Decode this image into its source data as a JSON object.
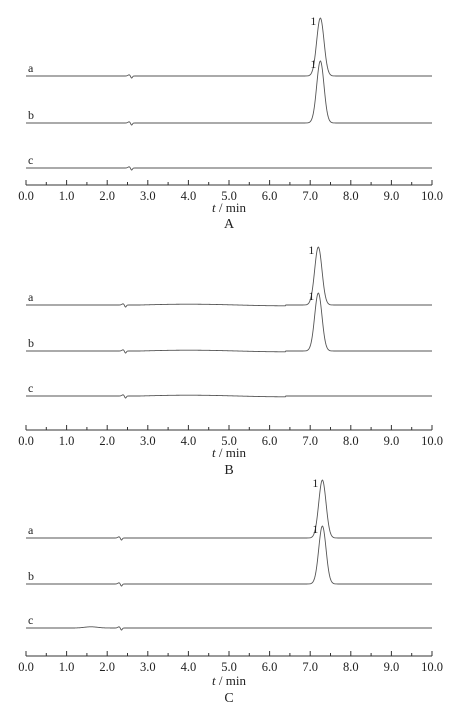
{
  "figure": {
    "axis_title_italic": "t",
    "axis_title_rest": " / min"
  },
  "chart_data": [
    {
      "type": "line",
      "panel_label": "A",
      "xlabel": "t / min",
      "xlim": [
        0,
        10
      ],
      "xticks": [
        "0.0",
        "1.0",
        "2.0",
        "3.0",
        "4.0",
        "5.0",
        "6.0",
        "7.0",
        "8.0",
        "9.0",
        "10.0"
      ],
      "grid": false,
      "legend": "none",
      "series": [
        {
          "name": "a",
          "baseline_note": "top trace",
          "peaks": [
            {
              "label": "1",
              "t": 7.25,
              "relative_height": 1.0
            }
          ],
          "disturbance_t": 2.6
        },
        {
          "name": "b",
          "peaks": [
            {
              "label": "1",
              "t": 7.25,
              "relative_height": 1.0
            }
          ],
          "disturbance_t": 2.6
        },
        {
          "name": "c",
          "peaks": [],
          "disturbance_t": 2.6
        }
      ]
    },
    {
      "type": "line",
      "panel_label": "B",
      "xlabel": "t / min",
      "xlim": [
        0,
        10
      ],
      "xticks": [
        "0.0",
        "1.0",
        "2.0",
        "3.0",
        "4.0",
        "5.0",
        "6.0",
        "7.0",
        "8.0",
        "9.0",
        "10.0"
      ],
      "grid": false,
      "legend": "none",
      "series": [
        {
          "name": "a",
          "peaks": [
            {
              "label": "1",
              "t": 7.2,
              "relative_height": 1.0
            }
          ],
          "disturbance_t": 2.45
        },
        {
          "name": "b",
          "peaks": [
            {
              "label": "1",
              "t": 7.2,
              "relative_height": 1.0
            }
          ],
          "disturbance_t": 2.45
        },
        {
          "name": "c",
          "peaks": [],
          "disturbance_t": 2.45
        }
      ]
    },
    {
      "type": "line",
      "panel_label": "C",
      "xlabel": "t / min",
      "xlim": [
        0,
        10
      ],
      "xticks": [
        "0.0",
        "1.0",
        "2.0",
        "3.0",
        "4.0",
        "5.0",
        "6.0",
        "7.0",
        "8.0",
        "9.0",
        "10.0"
      ],
      "grid": false,
      "legend": "none",
      "series": [
        {
          "name": "a",
          "peaks": [
            {
              "label": "1",
              "t": 7.3,
              "relative_height": 1.0
            }
          ],
          "disturbance_t": 2.35
        },
        {
          "name": "b",
          "peaks": [
            {
              "label": "1",
              "t": 7.3,
              "relative_height": 1.0
            }
          ],
          "disturbance_t": 2.35
        },
        {
          "name": "c",
          "peaks": [],
          "disturbance_t": 2.35
        }
      ]
    }
  ]
}
